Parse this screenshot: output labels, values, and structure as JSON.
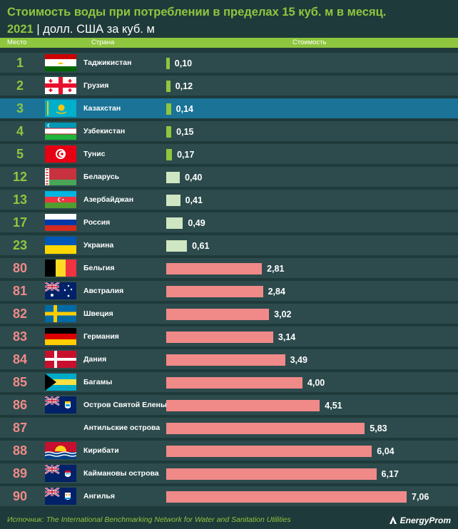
{
  "title_line1": "Стоимость воды при потреблении в пределах 15 куб. м в месяц.",
  "title_year": "2021",
  "title_separator": "|",
  "title_unit": "долл. США за куб. м",
  "headers": {
    "rank": "Место",
    "country": "Страна",
    "value": "Стоимость"
  },
  "source_label": "Источник:",
  "source_text": "The International Benchmarking Network for Water and Sanitation Utilities",
  "logo_text": "EnergyProm",
  "colors": {
    "background": "#1f3a3a",
    "row": "#2d4b4d",
    "row_highlight": "#1b7397",
    "accent_green": "#8fc63f",
    "bar_green": "#8fc63f",
    "bar_light": "#cfe6c2",
    "bar_pink": "#f08a88",
    "rank_pink": "#f08a88"
  },
  "chart_data": {
    "type": "bar",
    "orientation": "horizontal",
    "title": "Стоимость воды при потреблении в пределах 15 куб. м в месяц. 2021 | долл. США за куб. м",
    "xlabel": "Стоимость",
    "ylabel": "Страна",
    "xlim": [
      0,
      7.06
    ],
    "grid": false,
    "legend": "none",
    "rows": [
      {
        "rank": "1",
        "country": "Таджикистан",
        "value": 0.1,
        "label": "0,10",
        "flag": "tj-flag-icon",
        "group": "top"
      },
      {
        "rank": "2",
        "country": "Грузия",
        "value": 0.12,
        "label": "0,12",
        "flag": "ge-flag-icon",
        "group": "top"
      },
      {
        "rank": "3",
        "country": "Казахстан",
        "value": 0.14,
        "label": "0,14",
        "flag": "kz-flag-icon",
        "group": "top",
        "highlight": true
      },
      {
        "rank": "4",
        "country": "Узбекистан",
        "value": 0.15,
        "label": "0,15",
        "flag": "uz-flag-icon",
        "group": "top"
      },
      {
        "rank": "5",
        "country": "Тунис",
        "value": 0.17,
        "label": "0,17",
        "flag": "tn-flag-icon",
        "group": "top"
      },
      {
        "rank": "12",
        "country": "Беларусь",
        "value": 0.4,
        "label": "0,40",
        "flag": "by-flag-icon",
        "group": "mid"
      },
      {
        "rank": "13",
        "country": "Азербайджан",
        "value": 0.41,
        "label": "0,41",
        "flag": "az-flag-icon",
        "group": "mid"
      },
      {
        "rank": "17",
        "country": "Россия",
        "value": 0.49,
        "label": "0,49",
        "flag": "ru-flag-icon",
        "group": "mid"
      },
      {
        "rank": "23",
        "country": "Украина",
        "value": 0.61,
        "label": "0,61",
        "flag": "ua-flag-icon",
        "group": "mid"
      },
      {
        "rank": "80",
        "country": "Бельгия",
        "value": 2.81,
        "label": "2,81",
        "flag": "be-flag-icon",
        "group": "bottom"
      },
      {
        "rank": "81",
        "country": "Австралия",
        "value": 2.84,
        "label": "2,84",
        "flag": "au-flag-icon",
        "group": "bottom"
      },
      {
        "rank": "82",
        "country": "Швеция",
        "value": 3.02,
        "label": "3,02",
        "flag": "se-flag-icon",
        "group": "bottom"
      },
      {
        "rank": "83",
        "country": "Германия",
        "value": 3.14,
        "label": "3,14",
        "flag": "de-flag-icon",
        "group": "bottom"
      },
      {
        "rank": "84",
        "country": "Дания",
        "value": 3.49,
        "label": "3,49",
        "flag": "dk-flag-icon",
        "group": "bottom"
      },
      {
        "rank": "85",
        "country": "Багамы",
        "value": 4.0,
        "label": "4,00",
        "flag": "bs-flag-icon",
        "group": "bottom"
      },
      {
        "rank": "86",
        "country": "Остров Святой Елены",
        "value": 4.51,
        "label": "4,51",
        "flag": "sh-flag-icon",
        "group": "bottom"
      },
      {
        "rank": "87",
        "country": "Антильские острова",
        "value": 5.83,
        "label": "5,83",
        "flag": "",
        "group": "bottom"
      },
      {
        "rank": "88",
        "country": "Кирибати",
        "value": 6.04,
        "label": "6,04",
        "flag": "ki-flag-icon",
        "group": "bottom"
      },
      {
        "rank": "89",
        "country": "Каймановы острова",
        "value": 6.17,
        "label": "6,17",
        "flag": "ky-flag-icon",
        "group": "bottom"
      },
      {
        "rank": "90",
        "country": "Ангилья",
        "value": 7.06,
        "label": "7,06",
        "flag": "ai-flag-icon",
        "group": "bottom"
      }
    ]
  }
}
